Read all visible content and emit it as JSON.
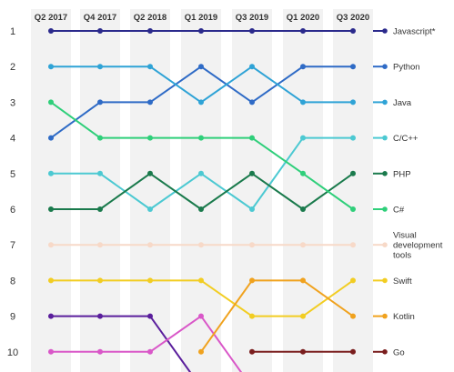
{
  "chart_data": {
    "type": "line",
    "title": "",
    "xlabel": "",
    "ylabel": "",
    "x": [
      "Q2 2017",
      "Q4 2017",
      "Q2 2018",
      "Q1 2019",
      "Q3 2019",
      "Q1 2020",
      "Q3 2020"
    ],
    "y_ticks": [
      "1",
      "2",
      "3",
      "4",
      "5",
      "6",
      "7",
      "8",
      "9",
      "10"
    ],
    "ylim": [
      1,
      10
    ],
    "y_reversed": true,
    "grid": "vertical column bands",
    "legend_position": "right",
    "series": [
      {
        "name": "Javascript*",
        "label_lines": [
          "Javascript*"
        ],
        "color": "#2b2a8c",
        "values": [
          1,
          1,
          1,
          1,
          1,
          1,
          1
        ]
      },
      {
        "name": "Python",
        "label_lines": [
          "Python"
        ],
        "color": "#2f6bc6",
        "values": [
          4,
          3,
          3,
          2,
          3,
          2,
          2
        ]
      },
      {
        "name": "Java",
        "label_lines": [
          "Java"
        ],
        "color": "#2fa3d6",
        "values": [
          2,
          2,
          2,
          3,
          2,
          3,
          3
        ]
      },
      {
        "name": "C/C++",
        "label_lines": [
          "C/C++"
        ],
        "color": "#4cc9d2",
        "values": [
          5,
          5,
          6,
          5,
          6,
          4,
          4
        ]
      },
      {
        "name": "PHP",
        "label_lines": [
          "PHP"
        ],
        "color": "#1a7a4c",
        "values": [
          6,
          6,
          5,
          6,
          5,
          6,
          5
        ]
      },
      {
        "name": "C#",
        "label_lines": [
          "C#"
        ],
        "color": "#2fcf7a",
        "values": [
          3,
          4,
          4,
          4,
          4,
          5,
          6
        ]
      },
      {
        "name": "Visual development tools",
        "label_lines": [
          "Visual",
          "development",
          "tools"
        ],
        "color": "#f7d9c8",
        "values": [
          7,
          7,
          7,
          7,
          7,
          7,
          7
        ]
      },
      {
        "name": "Swift",
        "label_lines": [
          "Swift"
        ],
        "color": "#f2cd22",
        "values": [
          8,
          8,
          8,
          8,
          9,
          9,
          8
        ]
      },
      {
        "name": "Kotlin",
        "label_lines": [
          "Kotlin"
        ],
        "color": "#f0a21e",
        "values": [
          null,
          null,
          null,
          10,
          8,
          8,
          9
        ]
      },
      {
        "name": "Go",
        "label_lines": [
          "Go"
        ],
        "color": "#7a1e1e",
        "values": [
          null,
          null,
          null,
          null,
          10,
          10,
          10
        ]
      }
    ],
    "partial_series": [
      {
        "color": "#5a1e9c",
        "values": [
          9,
          9,
          9,
          11
        ]
      },
      {
        "color": "#d957c8",
        "values": [
          10,
          10,
          10,
          9,
          11
        ]
      }
    ]
  }
}
